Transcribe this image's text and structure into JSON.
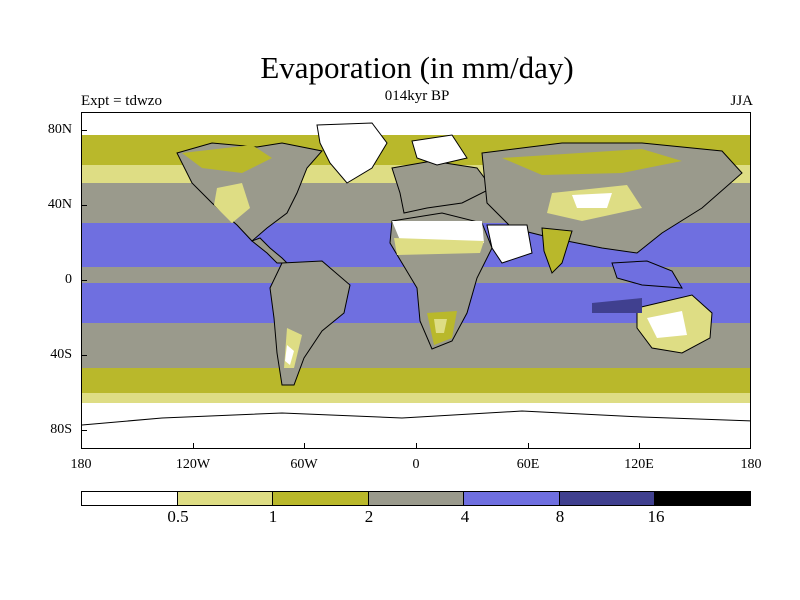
{
  "header": {
    "title": "Evaporation (in mm/day)",
    "subtitle": "014kyr BP",
    "experiment": "Expt = tdwzo",
    "season": "JJA"
  },
  "map": {
    "lat_labels": [
      "80N",
      "40N",
      "0",
      "40S",
      "80S"
    ],
    "lon_labels": [
      "180",
      "120W",
      "60W",
      "0",
      "60E",
      "120E",
      "180"
    ]
  },
  "colorbar": {
    "colors": [
      "#ffffff",
      "#dedd84",
      "#b9b82b",
      "#9a9a8c",
      "#6f6fe0",
      "#40408f",
      "#000000"
    ],
    "labels": [
      "0.5",
      "1",
      "2",
      "4",
      "8",
      "16"
    ]
  }
}
